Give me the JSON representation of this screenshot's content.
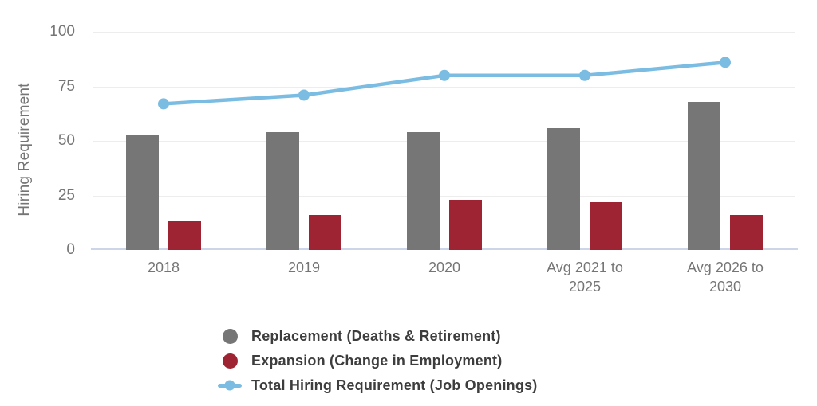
{
  "chart_data": {
    "type": "bar+line combo",
    "title": "",
    "xlabel": "",
    "ylabel": "Hiring Requirement",
    "ylim": [
      0,
      100
    ],
    "yticks": [
      0,
      25,
      50,
      75,
      100
    ],
    "grid": true,
    "legend_position": "bottom",
    "background": "#FFFFFF",
    "categories": [
      "2018",
      "2019",
      "2020",
      "Avg 2021 to 2025",
      "Avg 2026 to 2030"
    ],
    "series": [
      {
        "id": "replacement",
        "name": "Replacement (Deaths & Retirement)",
        "render": "bar",
        "color": "#767676",
        "values": [
          53,
          54,
          54,
          56,
          68
        ]
      },
      {
        "id": "expansion",
        "name": "Expansion (Change in Employment)",
        "render": "bar",
        "color": "#9E2433",
        "values": [
          13,
          16,
          23,
          22,
          16
        ]
      },
      {
        "id": "total",
        "name": "Total Hiring Requirement (Job Openings)",
        "render": "line",
        "color": "#7ABCE2",
        "values": [
          67,
          71,
          80,
          80,
          86
        ]
      }
    ],
    "colors": {
      "gridline": "#EDEDED",
      "axis_baseline": "#CDD5E8",
      "tick_text": "#757575",
      "axis_title_text": "#757575",
      "legend_text": "#3D3D3D"
    }
  }
}
